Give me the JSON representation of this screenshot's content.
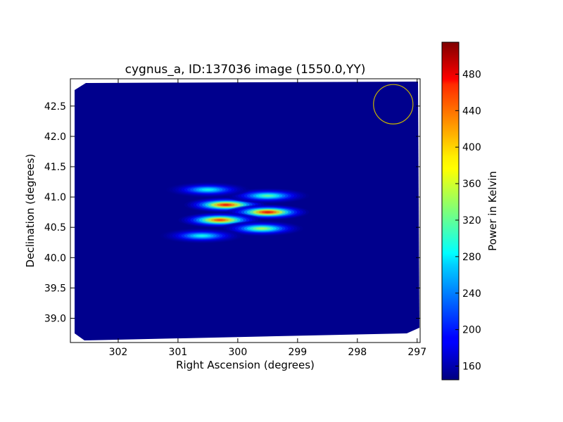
{
  "chart_data": {
    "type": "heatmap",
    "title": "cygnus_a, ID:137036 image (1550.0,YY)",
    "xlabel": "Right Ascension (degrees)",
    "ylabel": "Declination (degrees)",
    "xlim": [
      302.8,
      296.95
    ],
    "ylim": [
      38.6,
      42.95
    ],
    "xticks": [
      302,
      301,
      300,
      299,
      298,
      297
    ],
    "yticks": [
      39.0,
      39.5,
      40.0,
      40.5,
      41.0,
      41.5,
      42.0,
      42.5
    ],
    "ytick_labels": [
      "39.0",
      "39.5",
      "40.0",
      "40.5",
      "41.0",
      "41.5",
      "42.0",
      "42.5"
    ],
    "colormap": "jet",
    "colorbar": {
      "label": "Power in Kelvin",
      "range": [
        145,
        515
      ],
      "ticks": [
        160,
        200,
        240,
        280,
        320,
        360,
        400,
        440,
        480
      ]
    },
    "background_level": 150,
    "sources": [
      {
        "ra": 300.2,
        "dec": 40.87,
        "peak": 490
      },
      {
        "ra": 299.5,
        "dec": 40.75,
        "peak": 495
      },
      {
        "ra": 300.3,
        "dec": 40.62,
        "peak": 470
      },
      {
        "ra": 299.6,
        "dec": 40.48,
        "peak": 360
      },
      {
        "ra": 299.5,
        "dec": 41.02,
        "peak": 330
      },
      {
        "ra": 300.5,
        "dec": 41.12,
        "peak": 300
      },
      {
        "ra": 300.6,
        "dec": 40.36,
        "peak": 300
      }
    ],
    "beam_circle": {
      "ra": 297.4,
      "dec": 42.53,
      "radius_deg": 0.33,
      "color": "#c8b400"
    }
  }
}
